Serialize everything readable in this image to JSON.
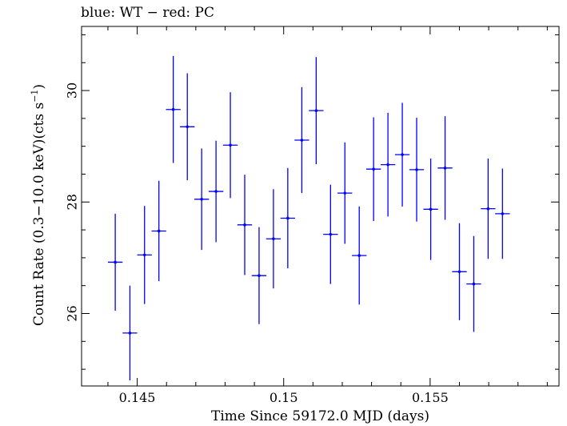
{
  "chart_data": {
    "type": "scatter",
    "title": "blue: WT − red: PC",
    "xlabel": "Time Since 59172.0 MJD (days)",
    "ylabel_main": "Count Rate (0.3−10.0 keV)(cts s",
    "ylabel_sup": "−1",
    "ylabel_end": ")",
    "xlim": [
      0.1431,
      0.1594
    ],
    "ylim": [
      24.7,
      31.15
    ],
    "xticks": [
      0.145,
      0.15,
      0.155
    ],
    "xtick_labels": [
      "0.145",
      "0.15",
      "0.155"
    ],
    "yticks": [
      26,
      28,
      30
    ],
    "ytick_labels": [
      "26",
      "28",
      "30"
    ],
    "grid": false,
    "series": [
      {
        "color": "#0000ff",
        "points": [
          {
            "x": 0.14425,
            "xerr": 0.00025,
            "y": 26.92,
            "yerr": 0.87
          },
          {
            "x": 0.14475,
            "xerr": 0.00025,
            "y": 25.65,
            "yerr": 0.85
          },
          {
            "x": 0.14525,
            "xerr": 0.00025,
            "y": 27.05,
            "yerr": 0.88
          },
          {
            "x": 0.14574,
            "xerr": 0.00025,
            "y": 27.48,
            "yerr": 0.9
          },
          {
            "x": 0.14623,
            "xerr": 0.00025,
            "y": 29.66,
            "yerr": 0.96
          },
          {
            "x": 0.14671,
            "xerr": 0.00025,
            "y": 29.35,
            "yerr": 0.96
          },
          {
            "x": 0.1472,
            "xerr": 0.00025,
            "y": 28.05,
            "yerr": 0.91
          },
          {
            "x": 0.14769,
            "xerr": 0.00025,
            "y": 28.19,
            "yerr": 0.91
          },
          {
            "x": 0.14818,
            "xerr": 0.00025,
            "y": 29.02,
            "yerr": 0.95
          },
          {
            "x": 0.14867,
            "xerr": 0.00025,
            "y": 27.59,
            "yerr": 0.9
          },
          {
            "x": 0.14916,
            "xerr": 0.00025,
            "y": 26.68,
            "yerr": 0.87
          },
          {
            "x": 0.14965,
            "xerr": 0.00025,
            "y": 27.34,
            "yerr": 0.89
          },
          {
            "x": 0.15014,
            "xerr": 0.00025,
            "y": 27.71,
            "yerr": 0.9
          },
          {
            "x": 0.15062,
            "xerr": 0.00025,
            "y": 29.11,
            "yerr": 0.95
          },
          {
            "x": 0.15111,
            "xerr": 0.00025,
            "y": 29.64,
            "yerr": 0.96
          },
          {
            "x": 0.1516,
            "xerr": 0.00025,
            "y": 27.42,
            "yerr": 0.89
          },
          {
            "x": 0.15209,
            "xerr": 0.00025,
            "y": 28.16,
            "yerr": 0.91
          },
          {
            "x": 0.15258,
            "xerr": 0.00025,
            "y": 27.04,
            "yerr": 0.88
          },
          {
            "x": 0.15307,
            "xerr": 0.00025,
            "y": 28.59,
            "yerr": 0.93
          },
          {
            "x": 0.15356,
            "xerr": 0.00025,
            "y": 28.67,
            "yerr": 0.93
          },
          {
            "x": 0.15405,
            "xerr": 0.00025,
            "y": 28.85,
            "yerr": 0.93
          },
          {
            "x": 0.15454,
            "xerr": 0.00025,
            "y": 28.58,
            "yerr": 0.93
          },
          {
            "x": 0.15502,
            "xerr": 0.00025,
            "y": 27.87,
            "yerr": 0.91
          },
          {
            "x": 0.15551,
            "xerr": 0.00025,
            "y": 28.61,
            "yerr": 0.93
          },
          {
            "x": 0.156,
            "xerr": 0.00025,
            "y": 26.75,
            "yerr": 0.87
          },
          {
            "x": 0.15649,
            "xerr": 0.00025,
            "y": 26.53,
            "yerr": 0.86
          },
          {
            "x": 0.15698,
            "xerr": 0.00025,
            "y": 27.88,
            "yerr": 0.9
          },
          {
            "x": 0.15747,
            "xerr": 0.00025,
            "y": 27.79,
            "yerr": 0.81
          }
        ]
      }
    ]
  }
}
